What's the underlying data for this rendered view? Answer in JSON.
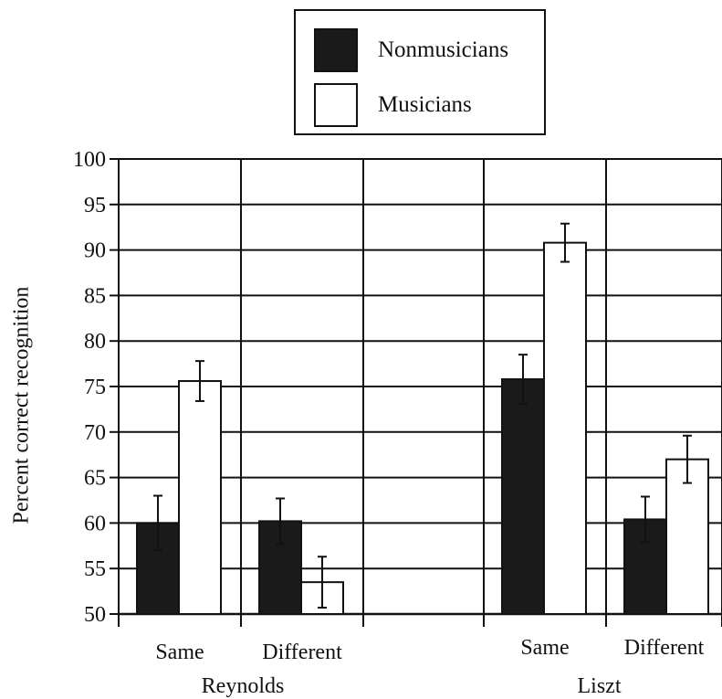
{
  "chart_data": {
    "type": "bar",
    "title": "",
    "xlabel": "",
    "ylabel": "Percent correct recognition",
    "ylim": [
      50,
      100
    ],
    "yticks": [
      50,
      55,
      60,
      65,
      70,
      75,
      80,
      85,
      90,
      95,
      100
    ],
    "grid": true,
    "legend_position": "top-center",
    "groups": [
      {
        "name": "Reynolds",
        "categories": [
          "Same",
          "Different"
        ]
      },
      {
        "name": "",
        "categories": [
          ""
        ]
      },
      {
        "name": "Liszt",
        "categories": [
          "Same",
          "Different"
        ]
      }
    ],
    "categories": [
      "Reynolds Same",
      "Reynolds Different",
      "Liszt Same",
      "Liszt Different"
    ],
    "series": [
      {
        "name": "Nonmusicians",
        "color": "#1a1a1a",
        "values": [
          60.0,
          60.2,
          75.8,
          60.4
        ],
        "error": [
          3.0,
          2.5,
          2.7,
          2.5
        ]
      },
      {
        "name": "Musicians",
        "color": "#ffffff",
        "values": [
          75.6,
          53.5,
          90.8,
          67.0
        ],
        "error": [
          2.2,
          2.8,
          2.1,
          2.6
        ]
      }
    ]
  }
}
